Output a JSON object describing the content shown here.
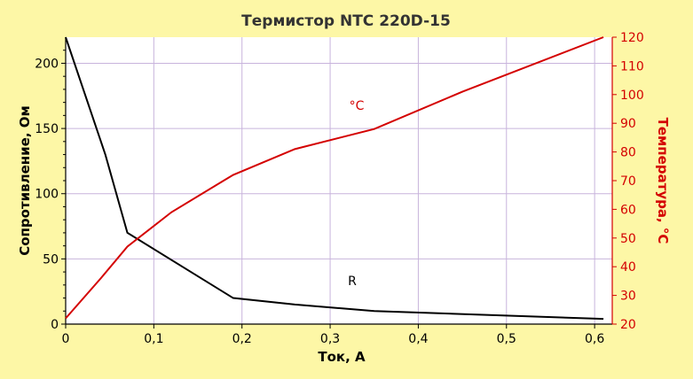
{
  "chart_data": {
    "type": "line",
    "title": "Термистор NTC 220D-15",
    "xlabel": "Ток, А",
    "ylabel_left": "Сопротивление, Ом",
    "ylabel_right": "Температура, °С",
    "xlim": [
      0,
      0.62
    ],
    "ylim_left": [
      0,
      220
    ],
    "ylim_right": [
      20,
      120
    ],
    "x_ticks": [
      "0",
      "0,1",
      "0,2",
      "0,3",
      "0,4",
      "0,5",
      "0,6"
    ],
    "y_left_ticks": [
      "0",
      "50",
      "100",
      "150",
      "200"
    ],
    "y_right_ticks": [
      "20",
      "30",
      "40",
      "50",
      "60",
      "70",
      "80",
      "90",
      "100",
      "110",
      "120"
    ],
    "grid": true,
    "colors": {
      "background": "#fdf7a6",
      "plot_bg": "#ffffff",
      "grid": "#c8b4dc",
      "resistance": "#000000",
      "temperature": "#d40000",
      "right_axis": "#d40000"
    },
    "series": [
      {
        "name": "R",
        "axis": "left",
        "x": [
          0,
          0.045,
          0.07,
          0.19,
          0.26,
          0.35,
          0.61
        ],
        "y": [
          220,
          130,
          70,
          20,
          15,
          10,
          4
        ]
      },
      {
        "name": "°С",
        "axis": "right",
        "x": [
          0,
          0.04,
          0.07,
          0.12,
          0.19,
          0.26,
          0.35,
          0.45,
          0.61
        ],
        "y": [
          22,
          36,
          47,
          59,
          72,
          81,
          88,
          101,
          120
        ]
      }
    ]
  }
}
